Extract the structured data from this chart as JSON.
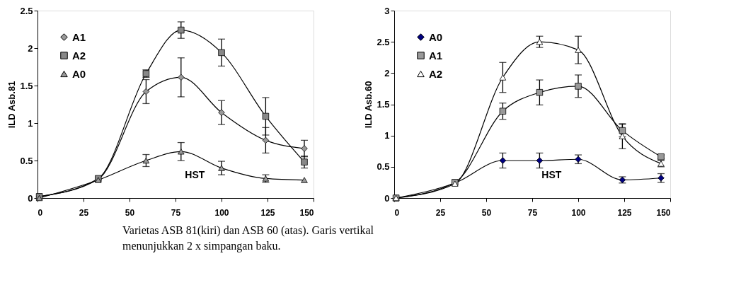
{
  "chart_data": [
    {
      "type": "line",
      "ylabel": "ILD Asb.81",
      "xlabel": "HST",
      "xlim": [
        0,
        150
      ],
      "xticks": [
        0,
        25,
        50,
        75,
        100,
        125,
        150
      ],
      "ylim": [
        0,
        2.5
      ],
      "yticks": [
        0,
        0.5,
        1,
        1.5,
        2,
        2.5
      ],
      "grid": false,
      "legend": "top left",
      "line_style": "solid",
      "annotations": [
        "Varietas ASB 81(kiri) dan ASB 60 (atas). Garis  vertikal",
        "menunjukkan 2 x simpangan baku."
      ],
      "series": [
        {
          "name": "A1",
          "color": "#999999",
          "marker": "diamond",
          "x": [
            1,
            33,
            59,
            78,
            100,
            124,
            145
          ],
          "values": [
            0.02,
            0.25,
            1.42,
            1.61,
            1.14,
            0.77,
            0.66
          ],
          "errors": [
            null,
            null,
            0.16,
            0.26,
            0.16,
            0.17,
            0.11
          ]
        },
        {
          "name": "A2",
          "color": "#888888",
          "marker": "square",
          "x": [
            1,
            33,
            59,
            78,
            100,
            124,
            145
          ],
          "values": [
            0.02,
            0.26,
            1.66,
            2.24,
            1.94,
            1.09,
            0.48
          ],
          "errors": [
            null,
            null,
            0.05,
            0.11,
            0.18,
            0.25,
            0.08
          ]
        },
        {
          "name": "A0",
          "color": "#999999",
          "marker": "triangle",
          "x": [
            1,
            33,
            59,
            78,
            100,
            124,
            145
          ],
          "values": [
            0,
            0.24,
            0.5,
            0.62,
            0.4,
            0.26,
            0.24
          ],
          "errors": [
            null,
            null,
            0.08,
            0.12,
            0.09,
            0.05,
            null
          ]
        }
      ]
    },
    {
      "type": "line",
      "ylabel": "ILD Asb.60",
      "xlabel": "HST",
      "xlim": [
        0,
        150
      ],
      "xticks": [
        0,
        25,
        50,
        75,
        100,
        125,
        150
      ],
      "ylim": [
        0,
        3
      ],
      "yticks": [
        0,
        0.5,
        1,
        1.5,
        2,
        2.5,
        3
      ],
      "grid": false,
      "legend": "top left",
      "line_style": "solid",
      "series": [
        {
          "name": "A0",
          "color": "#000080",
          "marker": "diamond",
          "x": [
            1,
            33,
            59,
            79,
            100,
            124,
            145
          ],
          "values": [
            0,
            0.24,
            0.6,
            0.6,
            0.62,
            0.29,
            0.32
          ],
          "errors": [
            null,
            null,
            0.12,
            0.12,
            0.07,
            0.05,
            0.07
          ]
        },
        {
          "name": "A1",
          "color": "#999999",
          "marker": "square",
          "x": [
            1,
            33,
            59,
            79,
            100,
            124,
            145
          ],
          "values": [
            0,
            0.25,
            1.39,
            1.69,
            1.79,
            1.08,
            0.66
          ],
          "errors": [
            null,
            null,
            0.13,
            0.2,
            0.18,
            0.1,
            0.03
          ]
        },
        {
          "name": "A2",
          "color": "#ffffff",
          "marker": "triangle",
          "x": [
            1,
            33,
            59,
            79,
            100,
            124,
            145
          ],
          "values": [
            0,
            0.23,
            1.93,
            2.5,
            2.37,
            0.99,
            0.55
          ],
          "errors": [
            null,
            null,
            0.24,
            0.09,
            0.22,
            0.2,
            0.05
          ]
        }
      ]
    }
  ]
}
